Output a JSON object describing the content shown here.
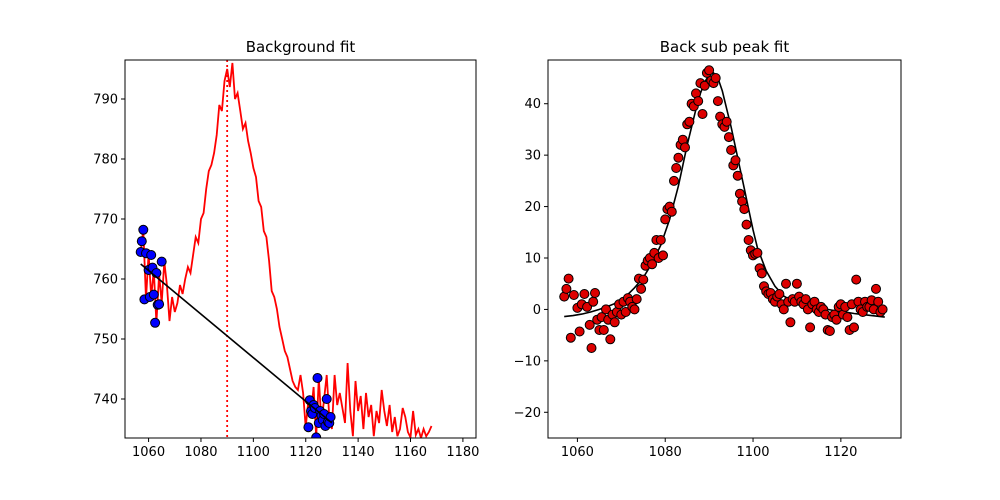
{
  "chart_data": [
    {
      "type": "line",
      "title": "Background fit",
      "xlabel": "",
      "ylabel": "",
      "xlim": [
        1051,
        1185
      ],
      "ylim": [
        733.5,
        796.5
      ],
      "xticks": [
        1060,
        1080,
        1100,
        1120,
        1140,
        1160,
        1180
      ],
      "yticks": [
        740,
        750,
        760,
        770,
        780,
        790
      ],
      "grid": false,
      "colors": {
        "raw": "#ff0000",
        "background_points": "#0000ff",
        "fit": "#000000",
        "center": "#ff0000"
      },
      "series": [
        {
          "style": "solid-red",
          "x": [
            1057,
            1058,
            1059,
            1060,
            1061,
            1062,
            1063,
            1064,
            1065,
            1066,
            1067,
            1068,
            1069,
            1070,
            1071,
            1072,
            1073,
            1074,
            1075,
            1076,
            1077,
            1078,
            1079,
            1080,
            1081,
            1082,
            1083,
            1084,
            1085,
            1086,
            1087,
            1088,
            1089,
            1090,
            1091,
            1092,
            1093,
            1094,
            1095,
            1096,
            1097,
            1098,
            1099,
            1100,
            1101,
            1102,
            1103,
            1104,
            1105,
            1106,
            1107,
            1108,
            1109,
            1110,
            1111,
            1112,
            1113,
            1114,
            1115,
            1116,
            1117,
            1118,
            1119,
            1120,
            1121,
            1122,
            1123,
            1124,
            1125,
            1126,
            1127,
            1128,
            1129,
            1130,
            1131,
            1132,
            1133,
            1134,
            1135,
            1136,
            1137,
            1138,
            1139,
            1140,
            1141,
            1142,
            1143,
            1144,
            1145,
            1146,
            1147,
            1148,
            1149,
            1150,
            1151,
            1152,
            1153,
            1154,
            1155,
            1156,
            1157,
            1158,
            1159,
            1160,
            1161,
            1162,
            1163,
            1164,
            1165,
            1166,
            1167,
            1168
          ],
          "y": [
            764.5,
            768.2,
            756.6,
            764.3,
            757.0,
            761.5,
            752.7,
            760.8,
            756.0,
            762.9,
            759.0,
            753.0,
            757.0,
            754.5,
            756.0,
            759.0,
            757.5,
            760.0,
            762.0,
            761.0,
            764.0,
            767.0,
            766.0,
            770.0,
            771.0,
            775.0,
            778.0,
            779.0,
            781.0,
            784.0,
            789.0,
            788.0,
            793.0,
            795.0,
            792.0,
            796.0,
            790.0,
            791.0,
            788.0,
            785.0,
            786.0,
            783.0,
            781.0,
            778.5,
            777.0,
            773.0,
            772.0,
            768.0,
            767.0,
            763.0,
            758.0,
            757.0,
            755.0,
            752.0,
            750.0,
            748.0,
            747.0,
            745.0,
            743.0,
            742.0,
            741.5,
            744.0,
            741.0,
            735.3,
            739.8,
            737.5,
            742.0,
            733.6,
            743.5,
            736.0,
            740.0,
            744.0,
            737.0,
            735.0,
            744.0,
            739.0,
            741.0,
            738.5,
            736.0,
            746.0,
            738.0,
            733.8,
            743.0,
            738.0,
            740.5,
            735.0,
            741.0,
            737.0,
            739.0,
            733.8,
            738.0,
            736.0,
            741.5,
            738.0,
            735.5,
            739.0,
            734.5,
            737.0,
            733.8,
            735.0,
            738.5,
            737.0,
            734.5,
            733.6,
            738.0,
            734.0,
            735.0,
            733.5,
            735.0,
            733.8,
            734.5,
            735.5
          ]
        },
        {
          "style": "blue-points",
          "x": [
            1057.0,
            1057.4,
            1058.0,
            1058.4,
            1059.0,
            1060.0,
            1060.5,
            1061.0,
            1061.5,
            1062.0,
            1062.5,
            1063.0,
            1063.5,
            1064.0,
            1065.0,
            1121.0,
            1121.5,
            1122.0,
            1122.5,
            1123.0,
            1123.5,
            1124.0,
            1124.5,
            1125.0,
            1125.5,
            1126.0,
            1126.5,
            1127.0,
            1127.5,
            1128.0,
            1128.5,
            1129.0,
            1129.5
          ],
          "y": [
            764.5,
            766.3,
            768.2,
            756.6,
            764.3,
            761.5,
            757.0,
            764.0,
            761.9,
            757.4,
            752.7,
            761.0,
            755.7,
            755.8,
            762.9,
            735.3,
            739.8,
            738.0,
            737.5,
            739.0,
            738.5,
            733.6,
            743.5,
            736.0,
            738.0,
            737.2,
            736.5,
            737.5,
            735.5,
            740.0,
            736.2,
            736.0,
            737.0
          ]
        },
        {
          "style": "black-fit",
          "x": [
            1057,
            1130
          ],
          "y": [
            762.5,
            736.0
          ]
        }
      ],
      "center_line_x": 1090
    },
    {
      "type": "scatter",
      "title": "Back sub peak fit",
      "xlabel": "",
      "ylabel": "",
      "xlim": [
        1053.3,
        1133.7
      ],
      "ylim": [
        -25,
        48.5
      ],
      "xticks": [
        1060,
        1080,
        1100,
        1120
      ],
      "yticks": [
        -20,
        -10,
        0,
        10,
        20,
        30,
        40
      ],
      "grid": false,
      "colors": {
        "points": "#dd0000",
        "fit": "#000000"
      },
      "series": [
        {
          "style": "red-points",
          "x": [
            1057.0,
            1057.5,
            1058.0,
            1058.5,
            1059.2,
            1060.0,
            1060.5,
            1061.0,
            1061.6,
            1062.2,
            1062.8,
            1063.2,
            1063.6,
            1064.0,
            1064.5,
            1065.0,
            1065.5,
            1066.0,
            1066.5,
            1067.0,
            1067.5,
            1068.0,
            1068.5,
            1069.0,
            1069.5,
            1070.0,
            1070.5,
            1071.0,
            1071.5,
            1072.0,
            1072.5,
            1073.0,
            1073.5,
            1074.0,
            1074.5,
            1075.0,
            1075.5,
            1076.0,
            1076.5,
            1077.0,
            1077.5,
            1078.0,
            1078.5,
            1079.0,
            1079.5,
            1080.0,
            1080.5,
            1081.0,
            1081.5,
            1082.0,
            1082.5,
            1083.0,
            1083.5,
            1084.0,
            1084.5,
            1085.0,
            1085.5,
            1086.0,
            1086.5,
            1087.0,
            1087.5,
            1088.0,
            1088.5,
            1089.0,
            1089.5,
            1090.0,
            1090.5,
            1091.0,
            1091.5,
            1092.0,
            1092.5,
            1093.0,
            1093.5,
            1094.0,
            1094.5,
            1095.0,
            1095.5,
            1096.0,
            1096.5,
            1097.0,
            1097.5,
            1098.0,
            1098.5,
            1099.0,
            1099.5,
            1100.0,
            1100.5,
            1101.0,
            1101.5,
            1102.0,
            1102.5,
            1103.0,
            1103.5,
            1104.0,
            1104.5,
            1105.0,
            1105.5,
            1106.0,
            1106.5,
            1107.0,
            1107.5,
            1108.0,
            1108.5,
            1109.0,
            1109.5,
            1110.0,
            1110.5,
            1111.0,
            1111.5,
            1112.0,
            1112.5,
            1113.0,
            1113.5,
            1114.0,
            1114.5,
            1115.0,
            1115.5,
            1116.0,
            1116.5,
            1117.0,
            1117.5,
            1118.0,
            1118.5,
            1119.0,
            1119.5,
            1120.0,
            1120.5,
            1121.0,
            1121.5,
            1122.0,
            1122.5,
            1123.0,
            1123.5,
            1124.0,
            1124.5,
            1125.0,
            1125.5,
            1126.0,
            1126.5,
            1127.0,
            1127.5,
            1128.0,
            1128.5,
            1129.0,
            1129.5
          ],
          "y": [
            2.5,
            4.0,
            6.0,
            -5.5,
            2.8,
            0.3,
            -4.3,
            1.0,
            3.0,
            0.5,
            -3.0,
            -7.5,
            1.5,
            3.2,
            -2.0,
            -4.0,
            -1.5,
            -4.0,
            0.0,
            -2.0,
            -5.8,
            -1.0,
            -2.5,
            -0.5,
            1.0,
            -1.0,
            1.5,
            -0.5,
            2.2,
            1.5,
            0.5,
            0.0,
            2.0,
            6.0,
            4.0,
            5.8,
            8.5,
            9.5,
            10.0,
            8.8,
            11.0,
            13.5,
            10.0,
            13.5,
            10.5,
            17.5,
            19.5,
            20.0,
            19.0,
            25.0,
            27.5,
            29.5,
            32.0,
            33.0,
            31.5,
            36.0,
            36.5,
            40.0,
            39.5,
            42.0,
            40.5,
            44.0,
            38.0,
            43.5,
            46.0,
            46.5,
            44.5,
            44.0,
            45.0,
            40.5,
            37.5,
            36.0,
            35.5,
            36.5,
            33.5,
            31.0,
            28.0,
            29.0,
            26.0,
            22.5,
            21.0,
            19.5,
            16.5,
            13.5,
            11.5,
            10.5,
            10.8,
            11.0,
            8.0,
            7.0,
            4.5,
            3.5,
            3.0,
            3.2,
            2.0,
            1.5,
            2.5,
            3.0,
            1.0,
            0.0,
            5.0,
            1.5,
            -2.5,
            2.0,
            1.5,
            5.0,
            2.5,
            1.5,
            1.0,
            2.0,
            0.0,
            -3.5,
            1.0,
            1.5,
            0.0,
            -0.5,
            0.5,
            0.0,
            -1.0,
            -4.0,
            -4.2,
            -1.5,
            -1.0,
            -2.0,
            0.5,
            1.0,
            -1.0,
            0.5,
            -1.5,
            -4.0,
            1.0,
            -3.5,
            5.8,
            1.5,
            0.0,
            -0.5,
            1.5,
            0.5,
            0.5,
            1.8,
            0.0,
            4.0,
            1.5,
            -0.5,
            0.0
          ]
        },
        {
          "style": "black-fit",
          "x": [
            1057,
            1059,
            1061,
            1063,
            1065,
            1067,
            1069,
            1071,
            1073,
            1075,
            1077,
            1079,
            1081,
            1083,
            1084,
            1085,
            1086,
            1087,
            1088,
            1089,
            1090,
            1091,
            1092,
            1093,
            1094,
            1095,
            1096,
            1097,
            1098,
            1099,
            1100,
            1101,
            1103,
            1105,
            1107,
            1109,
            1111,
            1113,
            1115,
            1117,
            1119,
            1121,
            1123,
            1125,
            1127,
            1130
          ],
          "y": [
            -1.4,
            -1.2,
            -0.9,
            -0.5,
            0.0,
            0.6,
            1.3,
            2.5,
            4.2,
            6.2,
            9.0,
            12.5,
            17.5,
            24.0,
            28.0,
            32.0,
            35.5,
            39.0,
            42.0,
            44.2,
            45.6,
            46.0,
            45.0,
            42.5,
            39.0,
            35.5,
            31.5,
            27.5,
            23.5,
            19.5,
            15.5,
            12.0,
            7.5,
            4.5,
            2.6,
            1.6,
            0.9,
            0.5,
            0.2,
            0.0,
            -0.3,
            -0.5,
            -0.8,
            -1.0,
            -1.2,
            -1.5
          ]
        }
      ]
    }
  ]
}
